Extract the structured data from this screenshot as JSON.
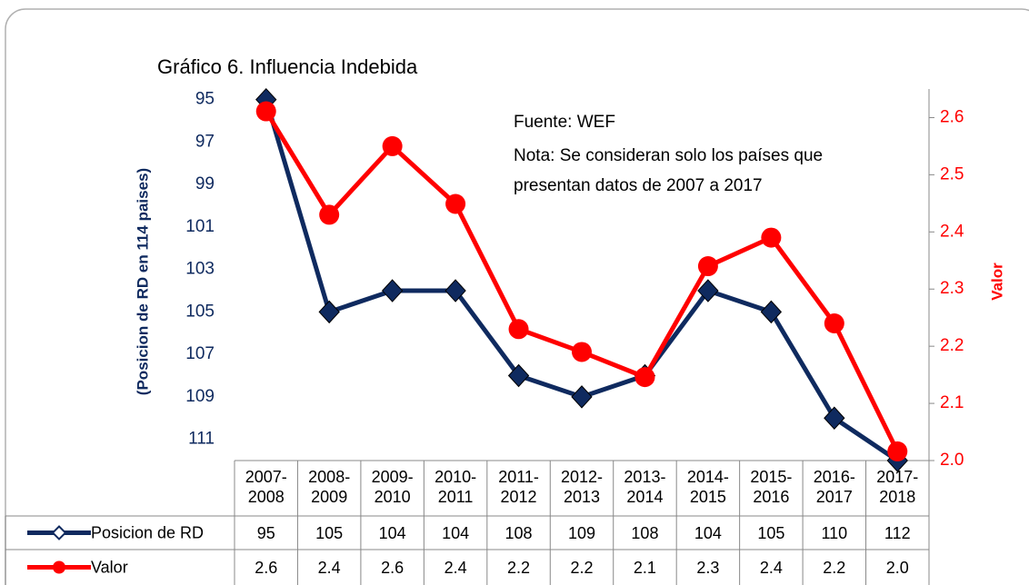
{
  "chart_data": {
    "type": "line",
    "title": "Gráfico  6. Influencia Indebida",
    "annotations": [
      "Fuente: WEF",
      "Nota: Se consideran solo los países que",
      "presentan datos de 2007 a 2017"
    ],
    "ylabel": "(Posicion de RD en 114 paises)",
    "y2label": "Valor",
    "categories": [
      "2007-\n2008",
      "2008-\n2009",
      "2009-\n2010",
      "2010-\n2011",
      "2011-\n2012",
      "2012-\n2013",
      "2013-\n2014",
      "2014-\n2015",
      "2015-\n2016",
      "2016-\n2017",
      "2017-\n2018"
    ],
    "series": [
      {
        "name": "Posicion de RD",
        "color": "#0f2a5f",
        "marker": "diamond",
        "values": [
          95,
          105,
          104,
          104,
          108,
          109,
          108,
          104,
          105,
          110,
          112
        ]
      },
      {
        "name": "Valor",
        "color": "#ff0000",
        "marker": "circle",
        "axis": "y2",
        "values": [
          2.611,
          2.43,
          2.55,
          2.449,
          2.23,
          2.19,
          2.146,
          2.34,
          2.39,
          2.24,
          2.016
        ],
        "value_labels": [
          "2.6",
          "2.4",
          "2.6",
          "2.4",
          "2.2",
          "2.2",
          "2.1",
          "2.3",
          "2.4",
          "2.2",
          "2.0"
        ]
      }
    ],
    "ylim": [
      112,
      94.5
    ],
    "yticks": [
      95,
      97,
      99,
      101,
      103,
      105,
      107,
      109,
      111
    ],
    "y2lim": [
      2.0,
      2.65
    ],
    "y2ticks": [
      {
        "value": 2,
        "label": "2.0"
      },
      2.1,
      2.2,
      2.3,
      2.4,
      2.5,
      2.6
    ],
    "grid": false
  }
}
